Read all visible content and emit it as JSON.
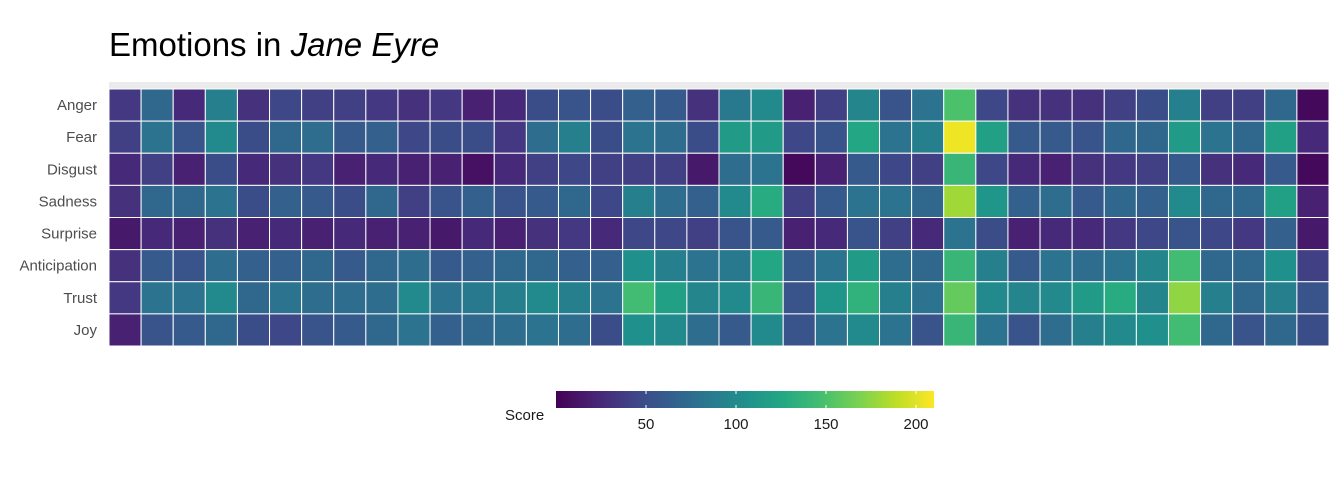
{
  "chart_data": {
    "type": "heatmap",
    "title_prefix": "Emotions in ",
    "title_italic": "Jane Eyre",
    "rows": [
      "Anger",
      "Fear",
      "Disgust",
      "Sadness",
      "Surprise",
      "Anticipation",
      "Trust",
      "Joy"
    ],
    "n_columns": 37,
    "values": [
      [
        35,
        70,
        25,
        90,
        30,
        45,
        40,
        40,
        35,
        30,
        35,
        20,
        25,
        50,
        55,
        50,
        65,
        60,
        30,
        85,
        100,
        20,
        40,
        95,
        55,
        80,
        150,
        45,
        30,
        30,
        30,
        40,
        50,
        90,
        40,
        40,
        70,
        5
      ],
      [
        40,
        80,
        55,
        100,
        50,
        70,
        75,
        60,
        65,
        45,
        50,
        50,
        35,
        75,
        90,
        50,
        80,
        75,
        50,
        115,
        115,
        45,
        55,
        125,
        80,
        90,
        205,
        120,
        60,
        60,
        55,
        70,
        70,
        115,
        80,
        70,
        120,
        25
      ],
      [
        25,
        40,
        20,
        50,
        25,
        30,
        35,
        20,
        25,
        20,
        20,
        10,
        25,
        40,
        45,
        40,
        40,
        40,
        15,
        75,
        80,
        5,
        20,
        60,
        45,
        40,
        140,
        45,
        25,
        20,
        30,
        35,
        40,
        60,
        30,
        25,
        60,
        5
      ],
      [
        30,
        70,
        70,
        80,
        50,
        65,
        60,
        50,
        70,
        40,
        55,
        65,
        55,
        60,
        70,
        45,
        90,
        75,
        65,
        100,
        130,
        40,
        60,
        80,
        80,
        70,
        180,
        110,
        65,
        75,
        60,
        70,
        65,
        100,
        70,
        70,
        120,
        20
      ],
      [
        15,
        25,
        20,
        30,
        20,
        25,
        20,
        25,
        20,
        20,
        15,
        25,
        20,
        30,
        35,
        25,
        45,
        45,
        40,
        55,
        60,
        20,
        25,
        55,
        40,
        25,
        80,
        50,
        20,
        25,
        25,
        35,
        45,
        55,
        45,
        35,
        65,
        15
      ],
      [
        30,
        60,
        55,
        75,
        65,
        65,
        70,
        60,
        70,
        75,
        60,
        65,
        70,
        70,
        65,
        65,
        105,
        90,
        80,
        85,
        125,
        60,
        80,
        115,
        75,
        70,
        140,
        90,
        60,
        80,
        75,
        80,
        95,
        145,
        70,
        70,
        105,
        40
      ],
      [
        35,
        80,
        80,
        100,
        70,
        80,
        75,
        75,
        75,
        100,
        80,
        85,
        90,
        100,
        90,
        80,
        145,
        120,
        95,
        100,
        140,
        55,
        110,
        135,
        90,
        80,
        160,
        100,
        95,
        100,
        115,
        130,
        95,
        175,
        90,
        70,
        90,
        55
      ],
      [
        20,
        55,
        60,
        70,
        50,
        45,
        55,
        60,
        70,
        80,
        65,
        70,
        75,
        80,
        75,
        50,
        105,
        100,
        75,
        60,
        100,
        55,
        80,
        100,
        80,
        55,
        140,
        80,
        55,
        75,
        90,
        100,
        105,
        145,
        70,
        55,
        70,
        50
      ]
    ],
    "scale": {
      "name": "Score",
      "min": 0,
      "max": 210,
      "ticks": [
        50,
        100,
        150,
        200
      ],
      "colormap": "viridis"
    }
  }
}
